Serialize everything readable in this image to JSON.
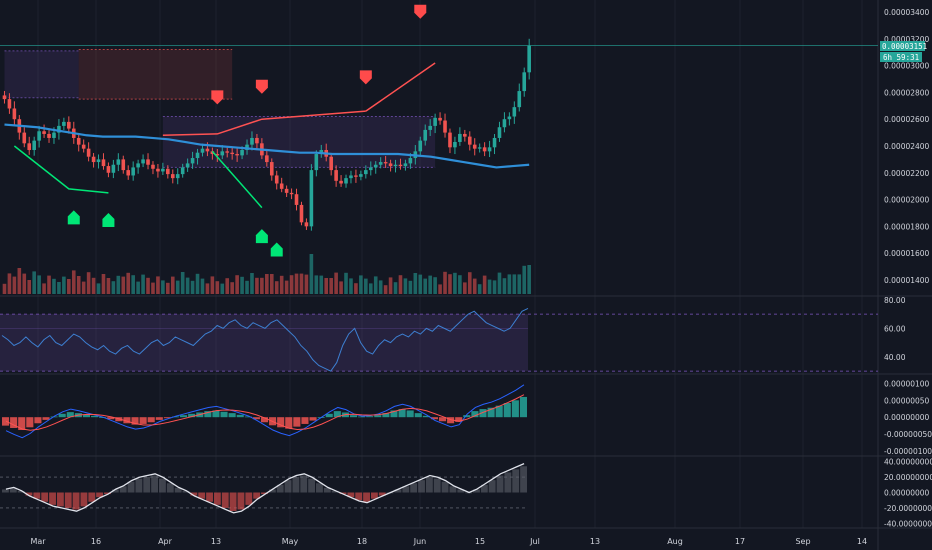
{
  "colors": {
    "background": "#131722",
    "grid": "#1e222d",
    "up": "#26a69a",
    "down": "#ef5350",
    "ma": "#2f8fd8",
    "rsi": "#2962ff",
    "rsi_band": "#7e57c2",
    "signal": "#ff5252",
    "buy": "#00e676",
    "sell": "#ff4b4b",
    "badge": "#26a69a"
  },
  "price_badge": {
    "price": "0.00003151",
    "countdown": "6h 59:31"
  },
  "chart_data": [
    {
      "type": "candlestick",
      "panel": "price",
      "title": "",
      "y_ticks": [
        "0.00003400",
        "0.00003200",
        "0.00003000",
        "0.00002800",
        "0.00002600",
        "0.00002400",
        "0.00002200",
        "0.00002000",
        "0.00001800",
        "0.00001600",
        "0.00001400"
      ],
      "ylim": [
        1.28e-05,
        3.49e-05
      ],
      "x_ticks": [
        "Mar",
        "16",
        "Apr",
        "13",
        "May",
        "18",
        "Jun",
        "15",
        "Jul",
        "13",
        "Aug",
        "17",
        "Sep",
        "14"
      ],
      "close_series": [
        2.75e-05,
        2.68e-05,
        2.6e-05,
        2.5e-05,
        2.42e-05,
        2.37e-05,
        2.44e-05,
        2.51e-05,
        2.49e-05,
        2.46e-05,
        2.5e-05,
        2.55e-05,
        2.58e-05,
        2.53e-05,
        2.46e-05,
        2.41e-05,
        2.38e-05,
        2.32e-05,
        2.28e-05,
        2.3e-05,
        2.25e-05,
        2.2e-05,
        2.26e-05,
        2.3e-05,
        2.22e-05,
        2.18e-05,
        2.24e-05,
        2.27e-05,
        2.3e-05,
        2.26e-05,
        2.23e-05,
        2.21e-05,
        2.23e-05,
        2.19e-05,
        2.16e-05,
        2.19e-05,
        2.24e-05,
        2.27e-05,
        2.31e-05,
        2.35e-05,
        2.38e-05,
        2.36e-05,
        2.34e-05,
        2.33e-05,
        2.36e-05,
        2.35e-05,
        2.34e-05,
        2.33e-05,
        2.37e-05,
        2.41e-05,
        2.46e-05,
        2.42e-05,
        2.33e-05,
        2.28e-05,
        2.18e-05,
        2.12e-05,
        2.08e-05,
        2.05e-05,
        2.04e-05,
        1.96e-05,
        1.83e-05,
        1.8e-05,
        2.22e-05,
        2.34e-05,
        2.37e-05,
        2.32e-05,
        2.22e-05,
        2.14e-05,
        2.12e-05,
        2.16e-05,
        2.18e-05,
        2.17e-05,
        2.19e-05,
        2.22e-05,
        2.24e-05,
        2.26e-05,
        2.28e-05,
        2.27e-05,
        2.25e-05,
        2.26e-05,
        2.25e-05,
        2.27e-05,
        2.31e-05,
        2.36e-05,
        2.44e-05,
        2.52e-05,
        2.55e-05,
        2.61e-05,
        2.59e-05,
        2.5e-05,
        2.39e-05,
        2.43e-05,
        2.49e-05,
        2.47e-05,
        2.41e-05,
        2.38e-05,
        2.39e-05,
        2.36e-05,
        2.39e-05,
        2.46e-05,
        2.54e-05,
        2.6e-05,
        2.62e-05,
        2.69e-05,
        2.81e-05,
        2.95e-05,
        3.15e-05
      ],
      "ma_series": [
        2.56e-05,
        2.55e-05,
        2.54e-05,
        2.52e-05,
        2.5e-05,
        2.48e-05,
        2.47e-05,
        2.47e-05,
        2.47e-05,
        2.46e-05,
        2.45e-05,
        2.43e-05,
        2.41e-05,
        2.4e-05,
        2.39e-05,
        2.38e-05,
        2.37e-05,
        2.36e-05,
        2.35e-05,
        2.35e-05,
        2.34e-05,
        2.34e-05,
        2.34e-05,
        2.34e-05,
        2.34e-05,
        2.33e-05,
        2.32e-05,
        2.3e-05,
        2.28e-05,
        2.26e-05,
        2.24e-05,
        2.25e-05,
        2.26e-05
      ],
      "rectangles": [
        {
          "x0": 0,
          "x1": 15,
          "y0": 3.11e-05,
          "y1": 2.76e-05,
          "fill": "#7e57c2"
        },
        {
          "x0": 15,
          "x1": 46,
          "y0": 3.12e-05,
          "y1": 2.75e-05,
          "fill": "#ef5350"
        },
        {
          "x0": 32,
          "x1": 87,
          "y0": 2.62e-05,
          "y1": 2.24e-05,
          "fill": "#7e57c2"
        }
      ],
      "trendlines": [
        {
          "points": [
            [
              32,
              2.48e-05
            ],
            [
              43,
              2.49e-05
            ],
            [
              52,
              2.6e-05
            ],
            [
              73,
              2.66e-05
            ]
          ],
          "color": "#ff5252"
        },
        {
          "points": [
            [
              73,
              2.66e-05
            ],
            [
              87,
              3.02e-05
            ]
          ],
          "color": "#ff5252"
        },
        {
          "points": [
            [
              2,
              2.4e-05
            ],
            [
              13,
              2.08e-05
            ],
            [
              21,
              2.05e-05
            ]
          ],
          "color": "#00e676"
        },
        {
          "points": [
            [
              42,
              2.36e-05
            ],
            [
              52,
              1.94e-05
            ]
          ],
          "color": "#00e676"
        }
      ],
      "sell_signals": [
        [
          43,
          2.77e-05
        ],
        [
          52,
          2.85e-05
        ],
        [
          73,
          2.92e-05
        ],
        [
          84,
          3.41e-05
        ]
      ],
      "buy_signals": [
        [
          14,
          1.86e-05
        ],
        [
          21,
          1.84e-05
        ],
        [
          52,
          1.72e-05
        ],
        [
          55,
          1.62e-05
        ]
      ]
    },
    {
      "type": "line",
      "panel": "RSI",
      "title": "",
      "y_ticks": [
        "80.00",
        "60.00",
        "40.00"
      ],
      "ylim": [
        28,
        82
      ],
      "band": [
        30,
        70
      ],
      "mid_line": 60,
      "values": [
        55,
        52,
        48,
        50,
        54,
        50,
        47,
        52,
        55,
        50,
        48,
        52,
        56,
        54,
        50,
        47,
        45,
        48,
        44,
        42,
        46,
        48,
        44,
        42,
        46,
        50,
        52,
        48,
        50,
        54,
        52,
        50,
        48,
        52,
        56,
        58,
        62,
        60,
        64,
        66,
        62,
        60,
        64,
        62,
        60,
        64,
        66,
        62,
        58,
        54,
        48,
        44,
        38,
        34,
        32,
        30,
        36,
        48,
        56,
        60,
        50,
        44,
        42,
        48,
        52,
        50,
        54,
        56,
        54,
        58,
        56,
        60,
        58,
        62,
        60,
        58,
        62,
        66,
        70,
        72,
        68,
        64,
        62,
        60,
        58,
        60,
        66,
        72,
        74
      ]
    },
    {
      "type": "bar",
      "panel": "MACD",
      "title": "",
      "y_ticks": [
        "0.00000100",
        "0.00000050",
        "0.00000000",
        "-0.00000050",
        "-0.00000100"
      ],
      "ylim": [
        -1.15e-06,
        1.25e-06
      ],
      "values": [
        -2.5e-07,
        -3.2e-07,
        -3.8e-07,
        -3e-07,
        -1.8e-07,
        -8e-08,
        2e-08,
        1e-07,
        1.5e-07,
        1.2e-07,
        8e-08,
        4e-08,
        0.0,
        -6e-08,
        -1.2e-07,
        -1.8e-07,
        -2.2e-07,
        -2e-07,
        -1.5e-07,
        -8e-08,
        -3e-08,
        2e-08,
        6e-08,
        1e-07,
        1.4e-07,
        1.8e-07,
        2e-07,
        1.6e-07,
        1.2e-07,
        7e-08,
        2e-08,
        -6e-08,
        -1.5e-07,
        -2.4e-07,
        -3e-07,
        -3.4e-07,
        -2.8e-07,
        -2e-07,
        -1e-07,
        0.0,
        1e-07,
        1.8e-07,
        1.4e-07,
        6e-08,
        2e-08,
        3e-08,
        6e-08,
        1.2e-07,
        2e-07,
        2.4e-07,
        2e-07,
        1.2e-07,
        4e-08,
        -6e-08,
        -1.2e-07,
        -1.8e-07,
        -1.4e-07,
        6e-08,
        1.8e-07,
        2.4e-07,
        2.8e-07,
        3.4e-07,
        4.2e-07,
        5e-07,
        6e-07
      ]
    },
    {
      "type": "bar",
      "panel": "Oscillator",
      "title": "",
      "y_ticks": [
        "40.00000000",
        "20.00000000",
        "0.00000000",
        "-20.00000000",
        "-40.00000000"
      ],
      "ylim": [
        -46,
        46
      ],
      "values": [
        4,
        6,
        2,
        -4,
        -8,
        -12,
        -16,
        -18,
        -20,
        -22,
        -18,
        -12,
        -6,
        -2,
        4,
        8,
        14,
        18,
        20,
        22,
        18,
        12,
        6,
        2,
        -4,
        -8,
        -12,
        -16,
        -20,
        -24,
        -22,
        -16,
        -8,
        -2,
        4,
        10,
        16,
        20,
        22,
        18,
        12,
        6,
        2,
        -2,
        -6,
        -10,
        -12,
        -8,
        -4,
        0,
        4,
        8,
        12,
        16,
        20,
        18,
        14,
        8,
        4,
        0,
        4,
        10,
        16,
        22,
        26,
        30,
        34
      ]
    }
  ]
}
